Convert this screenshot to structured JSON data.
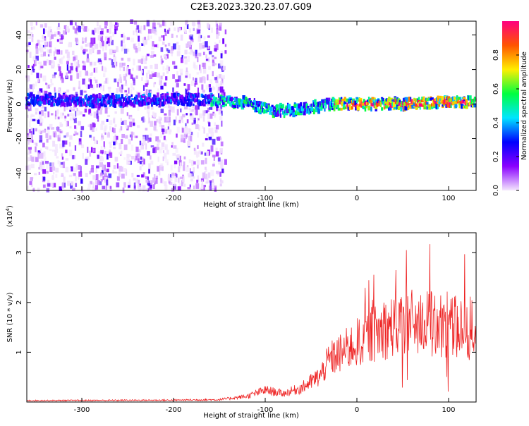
{
  "title": "C2E3.2023.320.23.07.G09",
  "chart_data": [
    {
      "type": "heatmap",
      "name": "spectrogram",
      "xlabel": "Height of straight line (km)",
      "ylabel": "Frequency (Hz)",
      "xlim": [
        -360,
        130
      ],
      "ylim": [
        -50,
        48
      ],
      "xticks": [
        -300,
        -200,
        -100,
        0,
        100
      ],
      "yticks": [
        40,
        20,
        0,
        -20,
        -40
      ],
      "colorbar": {
        "label": "Normalized spectral amplitude",
        "range": [
          0.0,
          1.0
        ],
        "ticks": [
          0.0,
          0.2,
          0.4,
          0.6,
          0.8
        ],
        "tick_labels": [
          "0.0",
          "0.2",
          "0.4",
          "0.6",
          "0.8"
        ],
        "colors": [
          "#f4e8fd",
          "#8a00ff",
          "#0000ff",
          "#00e5ff",
          "#00ff40",
          "#ffee00",
          "#ff5500",
          "#ff0080"
        ]
      },
      "signal_track": [
        {
          "x": -355,
          "f": 3
        },
        {
          "x": -300,
          "f": 2
        },
        {
          "x": -250,
          "f": 2
        },
        {
          "x": -200,
          "f": 3
        },
        {
          "x": -150,
          "f": 2
        },
        {
          "x": -120,
          "f": 1
        },
        {
          "x": -100,
          "f": -3
        },
        {
          "x": -80,
          "f": -4
        },
        {
          "x": -60,
          "f": -3
        },
        {
          "x": -40,
          "f": -1
        },
        {
          "x": -30,
          "f": 0
        },
        {
          "x": 0,
          "f": 0
        },
        {
          "x": 50,
          "f": 0
        },
        {
          "x": 100,
          "f": 1
        },
        {
          "x": 128,
          "f": 1
        }
      ],
      "noise_region_end": -155
    },
    {
      "type": "line",
      "name": "snr",
      "xlabel": "Height of straight line (km)",
      "ylabel": "SNR (10 * v/v)",
      "scale_label": "(x10",
      "scale_exponent": "4",
      "xlim": [
        -360,
        130
      ],
      "ylim": [
        0,
        3.4
      ],
      "xticks": [
        -300,
        -200,
        -100,
        0,
        100
      ],
      "yticks": [
        1,
        2,
        3
      ],
      "series": [
        {
          "name": "SNR",
          "color": "#ee2222",
          "envelope": [
            {
              "x": -360,
              "y": 0.03
            },
            {
              "x": -200,
              "y": 0.04
            },
            {
              "x": -150,
              "y": 0.05
            },
            {
              "x": -120,
              "y": 0.12
            },
            {
              "x": -100,
              "y": 0.25
            },
            {
              "x": -80,
              "y": 0.18
            },
            {
              "x": -60,
              "y": 0.3
            },
            {
              "x": -40,
              "y": 0.55
            },
            {
              "x": -30,
              "y": 0.9
            },
            {
              "x": -20,
              "y": 1.0
            },
            {
              "x": 0,
              "y": 1.25
            },
            {
              "x": 20,
              "y": 1.45
            },
            {
              "x": 40,
              "y": 1.6
            },
            {
              "x": 60,
              "y": 1.7
            },
            {
              "x": 80,
              "y": 1.65
            },
            {
              "x": 100,
              "y": 1.6
            },
            {
              "x": 120,
              "y": 1.55
            },
            {
              "x": 130,
              "y": 1.5
            }
          ]
        }
      ]
    }
  ]
}
